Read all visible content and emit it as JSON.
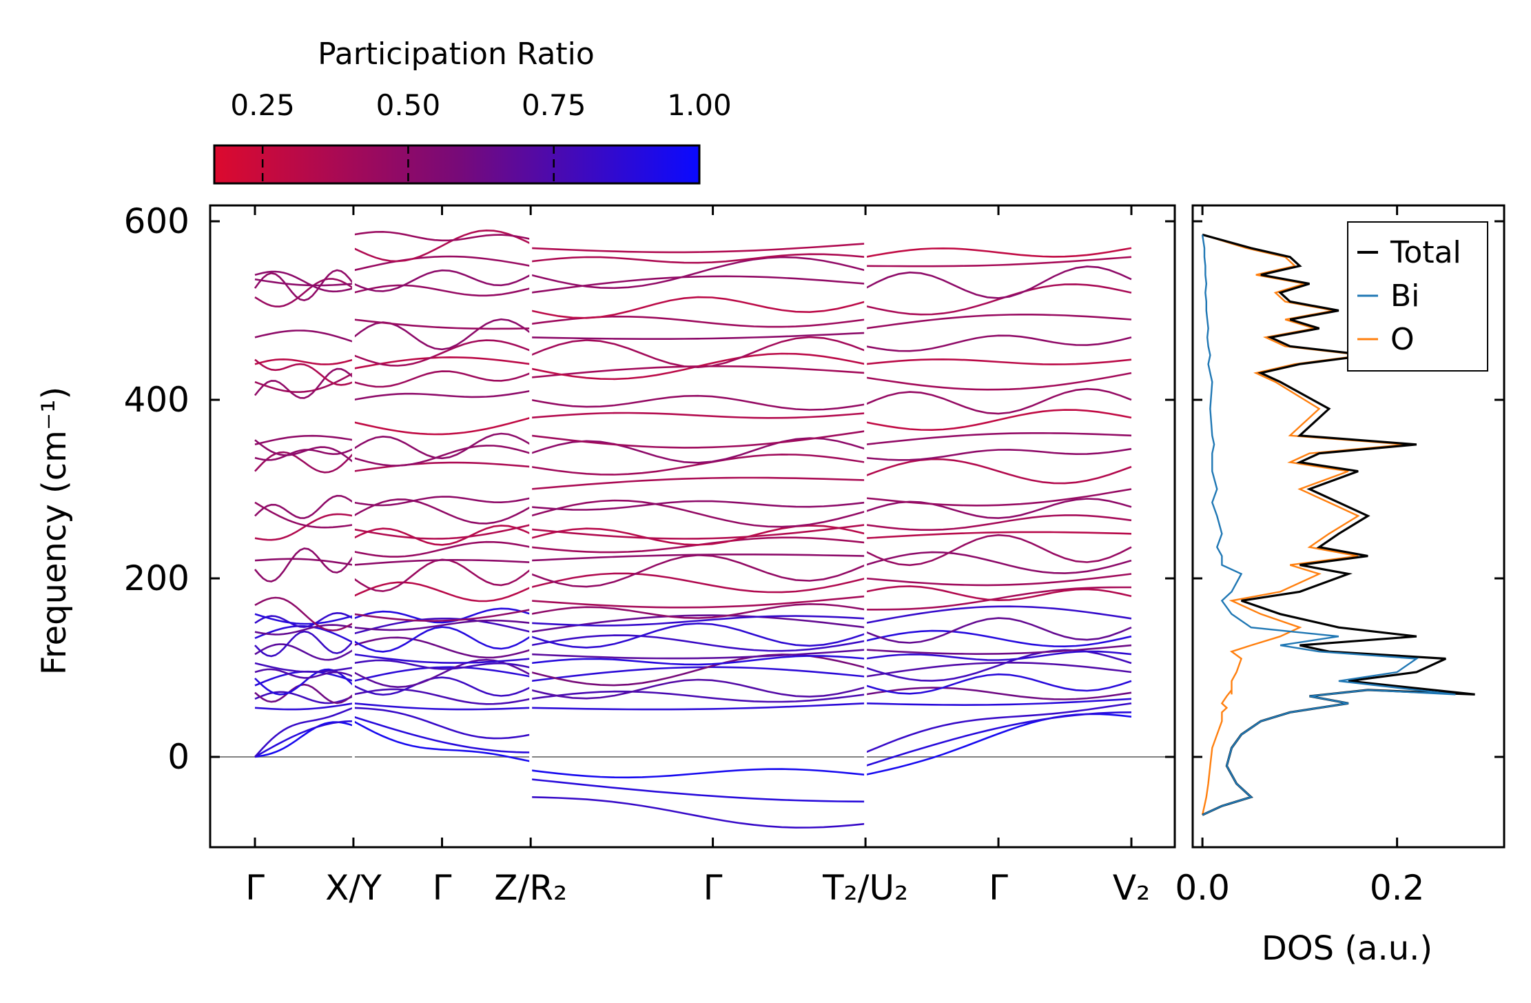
{
  "colorbar": {
    "label": "Participation Ratio",
    "ticks": [
      "0.25",
      "0.50",
      "0.75",
      "1.00"
    ],
    "tick_values": [
      0.25,
      0.5,
      0.75,
      1.0
    ],
    "range": [
      0.167,
      1.0
    ],
    "colors": [
      "#dc0a2e",
      "#0a0aff"
    ]
  },
  "chart_data": [
    {
      "type": "line",
      "name": "phonon-band-structure",
      "ylabel": "Frequency (cm⁻¹)",
      "ylim": [
        -100,
        620
      ],
      "yticks": [
        0,
        200,
        400,
        600
      ],
      "ytick_labels": [
        "0",
        "200",
        "400",
        "600"
      ],
      "zero_line": 0,
      "high_symmetry_points": [
        {
          "label": "Γ",
          "x": 0.0
        },
        {
          "label": "X/Y",
          "x": 1.0
        },
        {
          "label": "Γ",
          "x": 1.9
        },
        {
          "label": "Z/R₂",
          "x": 2.8
        },
        {
          "label": "Γ",
          "x": 4.65
        },
        {
          "label": "T₂/U₂",
          "x": 6.2
        },
        {
          "label": "Γ",
          "x": 7.55
        },
        {
          "label": "V₂",
          "x": 8.9
        }
      ],
      "segment_breaks": [
        1.0,
        2.8,
        6.2
      ],
      "segments": [
        {
          "from": 0.0,
          "to": 1.0,
          "acoustic": {
            "start": [
              0,
              0,
              0
            ],
            "end": [
              35,
              40,
              55
            ]
          },
          "optical": [
            [
              55,
              60
            ],
            [
              65,
              68
            ],
            [
              72,
              70
            ],
            [
              80,
              85
            ],
            [
              88,
              80
            ],
            [
              95,
              90
            ],
            [
              105,
              100
            ],
            [
              115,
              120
            ],
            [
              125,
              130
            ],
            [
              133,
              128
            ],
            [
              140,
              145
            ],
            [
              150,
              155
            ],
            [
              160,
              158
            ],
            [
              170,
              150
            ],
            [
              210,
              225
            ],
            [
              220,
              215
            ],
            [
              245,
              270
            ],
            [
              270,
              285
            ],
            [
              285,
              260
            ],
            [
              320,
              340
            ],
            [
              335,
              345
            ],
            [
              350,
              355
            ],
            [
              355,
              330
            ],
            [
              405,
              425
            ],
            [
              420,
              430
            ],
            [
              440,
              445
            ],
            [
              445,
              420
            ],
            [
              470,
              465
            ],
            [
              515,
              525
            ],
            [
              525,
              530
            ],
            [
              535,
              530
            ],
            [
              540,
              525
            ]
          ]
        },
        {
          "from": 1.0,
          "to": 2.8,
          "acoustic": {
            "start": [
              40,
              45,
              55
            ],
            "end": [
              -5,
              5,
              25
            ]
          },
          "optical": [
            [
              60,
              55
            ],
            [
              70,
              65
            ],
            [
              80,
              78
            ],
            [
              85,
              90
            ],
            [
              95,
              92
            ],
            [
              105,
              100
            ],
            [
              115,
              110
            ],
            [
              125,
              120
            ],
            [
              130,
              135
            ],
            [
              138,
              140
            ],
            [
              145,
              150
            ],
            [
              155,
              160
            ],
            [
              160,
              165
            ],
            [
              180,
              190
            ],
            [
              200,
              210
            ],
            [
              215,
              218
            ],
            [
              230,
              235
            ],
            [
              245,
              250
            ],
            [
              255,
              260
            ],
            [
              270,
              280
            ],
            [
              285,
              290
            ],
            [
              320,
              325
            ],
            [
              335,
              340
            ],
            [
              345,
              350
            ],
            [
              375,
              380
            ],
            [
              400,
              410
            ],
            [
              420,
              430
            ],
            [
              435,
              440
            ],
            [
              450,
              455
            ],
            [
              470,
              475
            ],
            [
              490,
              480
            ],
            [
              520,
              525
            ],
            [
              530,
              540
            ],
            [
              545,
              550
            ],
            [
              570,
              575
            ],
            [
              585,
              580
            ]
          ]
        },
        {
          "from": 2.8,
          "to": 6.2,
          "acoustic": {
            "start": [
              -15,
              -25,
              -45
            ],
            "end": [
              -20,
              -50,
              -75
            ]
          },
          "optical": [
            [
              55,
              60
            ],
            [
              65,
              70
            ],
            [
              75,
              78
            ],
            [
              85,
              90
            ],
            [
              95,
              100
            ],
            [
              105,
              110
            ],
            [
              115,
              120
            ],
            [
              125,
              130
            ],
            [
              135,
              138
            ],
            [
              140,
              145
            ],
            [
              150,
              155
            ],
            [
              160,
              165
            ],
            [
              175,
              180
            ],
            [
              190,
              200
            ],
            [
              205,
              215
            ],
            [
              220,
              225
            ],
            [
              235,
              240
            ],
            [
              245,
              250
            ],
            [
              255,
              260
            ],
            [
              270,
              275
            ],
            [
              280,
              285
            ],
            [
              300,
              310
            ],
            [
              325,
              330
            ],
            [
              340,
              345
            ],
            [
              360,
              365
            ],
            [
              380,
              385
            ],
            [
              400,
              395
            ],
            [
              425,
              430
            ],
            [
              435,
              440
            ],
            [
              450,
              455
            ],
            [
              470,
              475
            ],
            [
              485,
              490
            ],
            [
              500,
              510
            ],
            [
              520,
              530
            ],
            [
              540,
              545
            ],
            [
              555,
              560
            ],
            [
              570,
              575
            ]
          ]
        },
        {
          "from": 6.2,
          "to": 8.9,
          "acoustic": {
            "start": [
              -20,
              -10,
              5
            ],
            "end": [
              45,
              50,
              60
            ]
          },
          "optical": [
            [
              60,
              65
            ],
            [
              70,
              72
            ],
            [
              80,
              85
            ],
            [
              90,
              95
            ],
            [
              100,
              105
            ],
            [
              110,
              115
            ],
            [
              120,
              125
            ],
            [
              130,
              135
            ],
            [
              140,
              145
            ],
            [
              150,
              155
            ],
            [
              165,
              190
            ],
            [
              185,
              180
            ],
            [
              200,
              205
            ],
            [
              215,
              220
            ],
            [
              230,
              235
            ],
            [
              245,
              250
            ],
            [
              260,
              265
            ],
            [
              275,
              280
            ],
            [
              290,
              300
            ],
            [
              315,
              325
            ],
            [
              335,
              345
            ],
            [
              350,
              360
            ],
            [
              375,
              380
            ],
            [
              395,
              400
            ],
            [
              425,
              430
            ],
            [
              440,
              445
            ],
            [
              460,
              470
            ],
            [
              480,
              490
            ],
            [
              505,
              520
            ],
            [
              525,
              535
            ],
            [
              550,
              560
            ],
            [
              560,
              570
            ]
          ]
        }
      ]
    },
    {
      "type": "line",
      "name": "density-of-states",
      "xlabel": "DOS (a.u.)",
      "xlim": [
        -0.01,
        0.31
      ],
      "xticks": [
        0.0,
        0.2
      ],
      "xtick_labels": [
        "0.0",
        "0.2"
      ],
      "ylim": [
        -100,
        620
      ],
      "legend_position": "top-right",
      "series": [
        {
          "name": "Total",
          "color": "#000000",
          "x": [
            0.0,
            0.02,
            0.05,
            0.035,
            0.025,
            0.03,
            0.04,
            0.06,
            0.09,
            0.12,
            0.15,
            0.11,
            0.17,
            0.28,
            0.15,
            0.22,
            0.25,
            0.13,
            0.1,
            0.22,
            0.14,
            0.08,
            0.04,
            0.1,
            0.15,
            0.1,
            0.17,
            0.12,
            0.14,
            0.17,
            0.14,
            0.11,
            0.16,
            0.1,
            0.12,
            0.22,
            0.1,
            0.13,
            0.08,
            0.06,
            0.1,
            0.17,
            0.09,
            0.07,
            0.12,
            0.09,
            0.14,
            0.09,
            0.08,
            0.11,
            0.06,
            0.1,
            0.09,
            0.05,
            0.0
          ],
          "y": [
            -65,
            -55,
            -45,
            -30,
            -10,
            10,
            25,
            40,
            50,
            55,
            60,
            68,
            75,
            70,
            85,
            95,
            110,
            118,
            125,
            135,
            145,
            160,
            175,
            185,
            205,
            215,
            225,
            235,
            250,
            270,
            285,
            300,
            320,
            330,
            340,
            350,
            360,
            390,
            420,
            430,
            440,
            450,
            460,
            470,
            480,
            490,
            500,
            510,
            520,
            530,
            540,
            550,
            560,
            570,
            585
          ]
        },
        {
          "name": "Bi",
          "color": "#1f77b4",
          "x": [
            0.0,
            0.02,
            0.05,
            0.035,
            0.025,
            0.03,
            0.04,
            0.06,
            0.09,
            0.12,
            0.15,
            0.11,
            0.17,
            0.26,
            0.14,
            0.2,
            0.22,
            0.12,
            0.08,
            0.14,
            0.05,
            0.03,
            0.02,
            0.03,
            0.04,
            0.02,
            0.02,
            0.015,
            0.02,
            0.015,
            0.01,
            0.015,
            0.01,
            0.01,
            0.01,
            0.012,
            0.01,
            0.008,
            0.01,
            0.008,
            0.006,
            0.008,
            0.006,
            0.005,
            0.006,
            0.005,
            0.004,
            0.004,
            0.003,
            0.004,
            0.003,
            0.003,
            0.002,
            0.002,
            0.0
          ],
          "y": [
            -65,
            -55,
            -45,
            -30,
            -10,
            10,
            25,
            40,
            50,
            55,
            60,
            68,
            75,
            70,
            85,
            95,
            110,
            118,
            125,
            135,
            145,
            160,
            175,
            185,
            205,
            215,
            225,
            235,
            250,
            270,
            285,
            300,
            320,
            330,
            340,
            350,
            360,
            390,
            420,
            430,
            440,
            450,
            460,
            470,
            480,
            490,
            500,
            510,
            520,
            530,
            540,
            550,
            560,
            570,
            585
          ]
        },
        {
          "name": "O",
          "color": "#ff7f0e",
          "x": [
            0.0,
            0.002,
            0.004,
            0.006,
            0.008,
            0.01,
            0.015,
            0.02,
            0.02,
            0.025,
            0.02,
            0.025,
            0.03,
            0.03,
            0.03,
            0.035,
            0.04,
            0.03,
            0.05,
            0.08,
            0.1,
            0.06,
            0.03,
            0.08,
            0.12,
            0.09,
            0.16,
            0.11,
            0.13,
            0.16,
            0.13,
            0.1,
            0.15,
            0.09,
            0.11,
            0.21,
            0.09,
            0.12,
            0.075,
            0.055,
            0.095,
            0.165,
            0.085,
            0.065,
            0.115,
            0.085,
            0.135,
            0.085,
            0.075,
            0.105,
            0.055,
            0.095,
            0.085,
            0.045,
            0.0
          ],
          "y": [
            -65,
            -55,
            -45,
            -30,
            -10,
            10,
            25,
            40,
            50,
            55,
            60,
            68,
            75,
            70,
            85,
            95,
            110,
            118,
            125,
            135,
            145,
            160,
            175,
            185,
            205,
            215,
            225,
            235,
            250,
            270,
            285,
            300,
            320,
            330,
            340,
            350,
            360,
            390,
            420,
            430,
            440,
            450,
            460,
            470,
            480,
            490,
            500,
            510,
            520,
            530,
            540,
            550,
            560,
            570,
            585
          ]
        }
      ]
    }
  ]
}
